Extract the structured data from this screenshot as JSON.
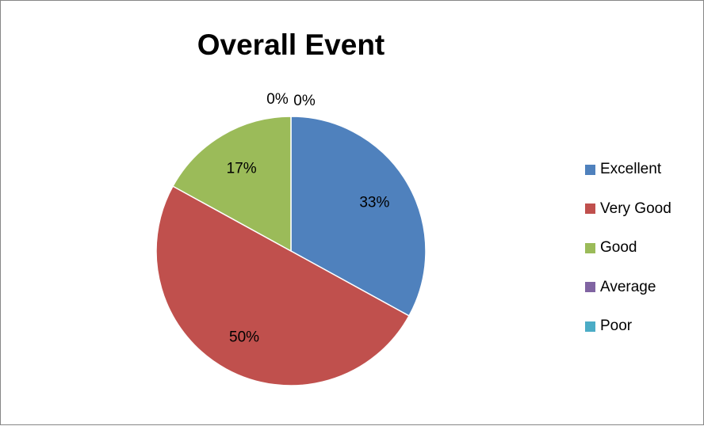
{
  "chart_data": {
    "type": "pie",
    "title": "Overall Event",
    "categories": [
      "Excellent",
      "Very Good",
      "Good",
      "Average",
      "Poor"
    ],
    "values": [
      33,
      50,
      17,
      0,
      0
    ],
    "value_labels": [
      "33%",
      "50%",
      "17%",
      "0%",
      "0%"
    ],
    "colors": [
      "#4F81BD",
      "#C0504D",
      "#9BBB59",
      "#8064A2",
      "#4BACC6"
    ],
    "legend_position": "right"
  }
}
